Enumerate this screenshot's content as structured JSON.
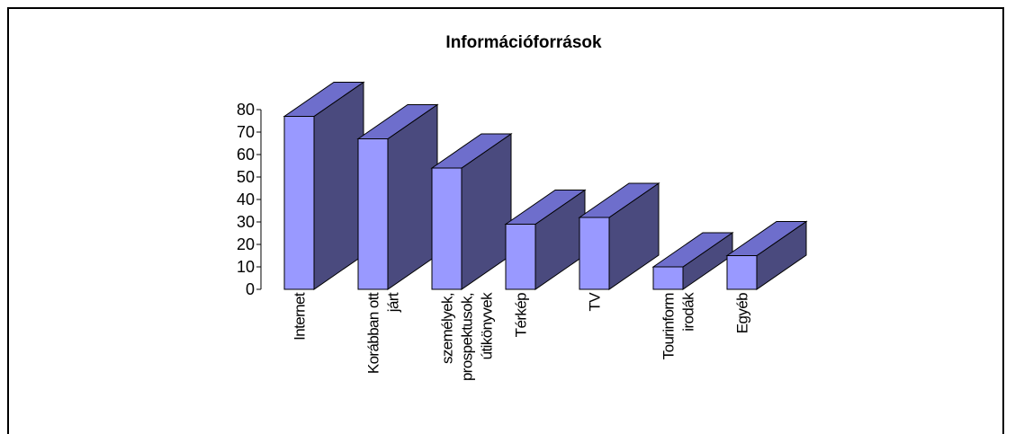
{
  "chart_data": {
    "type": "bar",
    "title": "Információforrások",
    "xlabel": "",
    "ylabel": "",
    "ylim": [
      0,
      80
    ],
    "yticks": [
      0,
      10,
      20,
      30,
      40,
      50,
      60,
      70,
      80
    ],
    "categories": [
      [
        "Internet"
      ],
      [
        "Korábban ott",
        "járt"
      ],
      [
        "személyek,",
        "prospektusok,",
        "útikönyvek"
      ],
      [
        "Térkép"
      ],
      [
        "TV"
      ],
      [
        "Tourinform",
        "irodák"
      ],
      [
        "Egyéb"
      ]
    ],
    "values": [
      77,
      67,
      54,
      29,
      32,
      10,
      15
    ],
    "grid": false,
    "legend": "none",
    "style": "3d-column",
    "colors": {
      "front": "#9999ff",
      "top": "#6e6ecc",
      "side": "#4a4a7e",
      "outline": "#000000"
    }
  }
}
